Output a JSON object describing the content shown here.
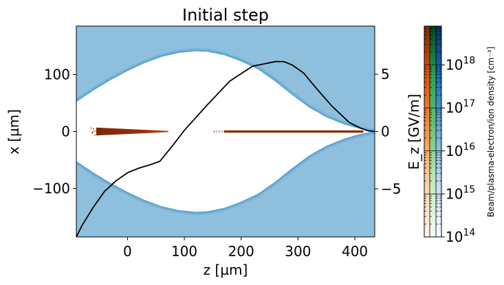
{
  "chart_data": {
    "type": "heatmap",
    "title": "Initial step",
    "xlabel": "z [µm]",
    "ylabel": "x [µm]",
    "y2label": "E_z [GV/m]",
    "colorbar_label": "Beam/plasma-electron/ion density [cm⁻³]",
    "xlim": [
      -90,
      435
    ],
    "ylim": [
      -185,
      185
    ],
    "y2lim": [
      -9.2,
      9.2
    ],
    "xticks": [
      0,
      100,
      200,
      300,
      400
    ],
    "xtick_labels": [
      "0",
      "100",
      "200",
      "300",
      "400"
    ],
    "yticks": [
      -100,
      0,
      100
    ],
    "ytick_labels": [
      "−100",
      "0",
      "100"
    ],
    "y2ticks": [
      -5,
      0,
      5
    ],
    "y2tick_labels": [
      "−5",
      "0",
      "5"
    ],
    "colorbar_range": [
      100000000000000.0,
      8e+18
    ],
    "colorbar_ticks": [
      {
        "value": 100000000000000.0,
        "base": "10",
        "exp": "14"
      },
      {
        "value": 1000000000000000.0,
        "base": "10",
        "exp": "15"
      },
      {
        "value": 1e+16,
        "base": "10",
        "exp": "16"
      },
      {
        "value": 1e+17,
        "base": "10",
        "exp": "17"
      },
      {
        "value": 1e+18,
        "base": "10",
        "exp": "18"
      }
    ],
    "colormaps": [
      "Oranges (beam)",
      "Greens (plasma electrons)",
      "Blues (ions)"
    ],
    "colors": {
      "plasma": "#8ebfdc",
      "plasma_edge": "#3a8ec9",
      "beam": "#8a2d04",
      "field_line": "#000000"
    },
    "bubble_boundary": {
      "z": [
        -90,
        -60,
        -30,
        0,
        30,
        60,
        90,
        120,
        140,
        170,
        200,
        230,
        260,
        290,
        320,
        350,
        380,
        400,
        420,
        435
      ],
      "x_half_width": [
        52,
        72,
        90,
        106,
        120,
        131,
        138,
        141,
        140,
        134,
        123,
        109,
        88,
        64,
        42,
        25,
        13,
        7,
        2,
        0
      ]
    },
    "drive_beam": {
      "z_start": -55,
      "z_end": 72,
      "x_halfwidth_at_start": 7,
      "x_halfwidth_at_end": 1
    },
    "witness_beam": {
      "z_start": 152,
      "z_end": 415,
      "x_halfwidth": 2
    },
    "series": [
      {
        "name": "E_z on axis",
        "axis": "right",
        "z": [
          -90,
          -80,
          -60,
          -40,
          -20,
          0,
          20,
          40,
          57,
          80,
          100,
          140,
          180,
          220,
          260,
          275,
          290,
          310,
          330,
          360,
          390,
          410,
          425,
          435
        ],
        "Ez": [
          -9.2,
          -8.2,
          -6.6,
          -5.2,
          -4.3,
          -3.6,
          -3.2,
          -2.9,
          -2.6,
          -1.2,
          0.1,
          2.3,
          4.4,
          5.7,
          6.1,
          6.1,
          5.8,
          5.1,
          3.9,
          2.2,
          0.8,
          0.3,
          0.05,
          0
        ]
      }
    ]
  }
}
